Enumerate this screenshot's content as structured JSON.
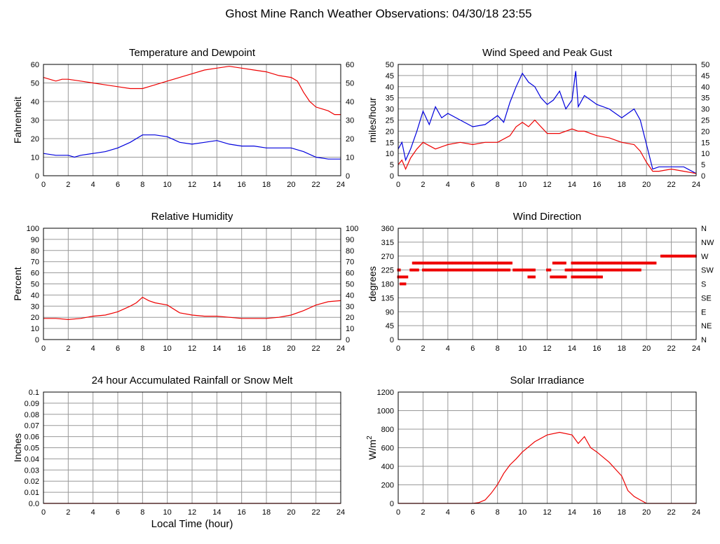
{
  "page": {
    "title": "Ghost Mine Ranch Weather Observations: 04/30/18 23:55",
    "xlabel_bottom": "Local Time (hour)"
  },
  "colors": {
    "red": "#ee0000",
    "blue": "#0000dd",
    "grid": "#999999",
    "frame": "#000000"
  },
  "chart_data": [
    {
      "id": "temp",
      "type": "line",
      "title": "Temperature and Dewpoint",
      "ylabel": "Fahrenheit",
      "xlim": [
        0,
        24
      ],
      "ylim": [
        0,
        60
      ],
      "xticks": [
        "0",
        "2",
        "4",
        "6",
        "8",
        "10",
        "12",
        "14",
        "16",
        "18",
        "20",
        "22",
        "24"
      ],
      "yticks": [
        "0",
        "10",
        "20",
        "30",
        "40",
        "50",
        "60"
      ],
      "right_yticks": [
        "0",
        "10",
        "20",
        "30",
        "40",
        "50",
        "60"
      ],
      "grid": true,
      "series": [
        {
          "color": "#ee0000",
          "x": [
            0,
            0.5,
            1,
            1.5,
            2,
            3,
            4,
            5,
            6,
            7,
            8,
            8.5,
            9,
            10,
            11,
            12,
            13,
            14,
            15,
            16,
            17,
            18,
            19,
            20,
            20.5,
            21,
            21.5,
            22,
            22.5,
            23,
            23.5,
            24
          ],
          "y": [
            53,
            52,
            51,
            52,
            52,
            51,
            50,
            49,
            48,
            47,
            47,
            48,
            49,
            51,
            53,
            55,
            57,
            58,
            59,
            58,
            57,
            56,
            54,
            53,
            51,
            45,
            40,
            37,
            36,
            35,
            33,
            33
          ]
        },
        {
          "color": "#0000dd",
          "x": [
            0,
            1,
            2,
            2.5,
            3,
            4,
            5,
            6,
            7,
            8,
            9,
            10,
            11,
            12,
            13,
            14,
            15,
            16,
            17,
            18,
            19,
            20,
            21,
            22,
            23,
            24
          ],
          "y": [
            12,
            11,
            11,
            10,
            11,
            12,
            13,
            15,
            18,
            22,
            22,
            21,
            18,
            17,
            18,
            19,
            17,
            16,
            16,
            15,
            15,
            15,
            13,
            10,
            9,
            9
          ]
        }
      ]
    },
    {
      "id": "wind",
      "type": "line",
      "title": "Wind Speed and Peak Gust",
      "ylabel": "miles/hour",
      "xlim": [
        0,
        24
      ],
      "ylim": [
        0,
        50
      ],
      "xticks": [
        "0",
        "2",
        "4",
        "6",
        "8",
        "10",
        "12",
        "14",
        "16",
        "18",
        "20",
        "22",
        "24"
      ],
      "yticks": [
        "0",
        "5",
        "10",
        "15",
        "20",
        "25",
        "30",
        "35",
        "40",
        "45",
        "50"
      ],
      "right_yticks": [
        "0",
        "5",
        "10",
        "15",
        "20",
        "25",
        "30",
        "35",
        "40",
        "45",
        "50"
      ],
      "grid": true,
      "series": [
        {
          "color": "#0000dd",
          "x": [
            0,
            0.3,
            0.6,
            1,
            1.5,
            2,
            2.5,
            3,
            3.5,
            4,
            5,
            6,
            7,
            8,
            8.5,
            9,
            9.5,
            10,
            10.5,
            11,
            11.5,
            12,
            12.5,
            13,
            13.5,
            14,
            14.3,
            14.5,
            15,
            16,
            17,
            18,
            19,
            19.5,
            20,
            20.5,
            21,
            22,
            23,
            24
          ],
          "y": [
            12,
            15,
            7,
            12,
            20,
            29,
            23,
            31,
            26,
            28,
            25,
            22,
            23,
            27,
            24,
            33,
            40,
            46,
            42,
            40,
            35,
            32,
            34,
            38,
            30,
            34,
            47,
            31,
            36,
            32,
            30,
            26,
            30,
            25,
            14,
            3,
            4,
            4,
            4,
            1
          ]
        },
        {
          "color": "#ee0000",
          "x": [
            0,
            0.3,
            0.6,
            1,
            1.5,
            2,
            3,
            4,
            5,
            6,
            7,
            8,
            9,
            9.5,
            10,
            10.5,
            11,
            12,
            13,
            14,
            14.5,
            15,
            16,
            17,
            18,
            19,
            19.5,
            20,
            20.5,
            21,
            22,
            23,
            24
          ],
          "y": [
            5,
            7,
            3,
            8,
            12,
            15,
            12,
            14,
            15,
            14,
            15,
            15,
            18,
            22,
            24,
            22,
            25,
            19,
            19,
            21,
            20,
            20,
            18,
            17,
            15,
            14,
            11,
            6,
            2,
            2,
            3,
            2,
            1
          ]
        }
      ]
    },
    {
      "id": "rh",
      "type": "line",
      "title": "Relative Humidity",
      "ylabel": "Percent",
      "xlim": [
        0,
        24
      ],
      "ylim": [
        0,
        100
      ],
      "xticks": [
        "0",
        "2",
        "4",
        "6",
        "8",
        "10",
        "12",
        "14",
        "16",
        "18",
        "20",
        "22",
        "24"
      ],
      "yticks": [
        "0",
        "10",
        "20",
        "30",
        "40",
        "50",
        "60",
        "70",
        "80",
        "90",
        "100"
      ],
      "right_yticks": [
        "0",
        "10",
        "20",
        "30",
        "40",
        "50",
        "60",
        "70",
        "80",
        "90",
        "100"
      ],
      "grid": true,
      "series": [
        {
          "color": "#ee0000",
          "x": [
            0,
            1,
            2,
            3,
            4,
            5,
            6,
            7,
            7.5,
            8,
            8.5,
            9,
            10,
            11,
            12,
            13,
            14,
            15,
            16,
            17,
            18,
            19,
            20,
            21,
            22,
            23,
            24
          ],
          "y": [
            19,
            19,
            18,
            19,
            21,
            22,
            25,
            30,
            33,
            38,
            35,
            33,
            31,
            24,
            22,
            21,
            21,
            20,
            19,
            19,
            19,
            20,
            22,
            26,
            31,
            34,
            35
          ]
        }
      ]
    },
    {
      "id": "dir",
      "type": "scatter",
      "title": "Wind Direction",
      "ylabel": "degrees",
      "xlim": [
        0,
        24
      ],
      "ylim": [
        0,
        360
      ],
      "xticks": [
        "0",
        "2",
        "4",
        "6",
        "8",
        "10",
        "12",
        "14",
        "16",
        "18",
        "20",
        "22",
        "24"
      ],
      "yticks": [
        "0",
        "45",
        "90",
        "135",
        "180",
        "225",
        "270",
        "315",
        "360"
      ],
      "right_yticks": [
        "N",
        "NE",
        "E",
        "SE",
        "S",
        "SW",
        "W",
        "NW",
        "N"
      ],
      "grid": true,
      "series": [
        {
          "color": "#ee0000",
          "bands": [
            {
              "y": 225,
              "x": [
                [
                  0,
                  0.2
                ],
                [
                  1,
                  1.6
                ],
                [
                  2,
                  9
                ],
                [
                  9.3,
                  11
                ],
                [
                  12,
                  12.3
                ],
                [
                  13.5,
                  19.5
                ]
              ]
            },
            {
              "y": 247.5,
              "x": [
                [
                  1.2,
                  9.2
                ],
                [
                  12.5,
                  13.5
                ],
                [
                  14,
                  20.8
                ]
              ]
            },
            {
              "y": 202.5,
              "x": [
                [
                  0,
                  0.8
                ],
                [
                  10.5,
                  11
                ],
                [
                  12.3,
                  13.5
                ],
                [
                  14,
                  16.5
                ]
              ]
            },
            {
              "y": 180,
              "x": [
                [
                  0.2,
                  0.6
                ]
              ]
            },
            {
              "y": 270,
              "x": [
                [
                  21.2,
                  24
                ]
              ]
            }
          ]
        }
      ]
    },
    {
      "id": "rain",
      "type": "line",
      "title": "24 hour Accumulated Rainfall or Snow Melt",
      "ylabel": "Inches",
      "xlim": [
        0,
        24
      ],
      "ylim": [
        0,
        0.1
      ],
      "xticks": [
        "0",
        "2",
        "4",
        "6",
        "8",
        "10",
        "12",
        "14",
        "16",
        "18",
        "20",
        "22",
        "24"
      ],
      "yticks": [
        "0.0",
        "0.01",
        "0.02",
        "0.03",
        "0.04",
        "0.05",
        "0.06",
        "0.07",
        "0.08",
        "0.09",
        "0.1"
      ],
      "grid": true,
      "series": [
        {
          "color": "#ee0000",
          "x": [
            0,
            24
          ],
          "y": [
            0,
            0
          ]
        }
      ]
    },
    {
      "id": "solar",
      "type": "line",
      "title": "Solar Irradiance",
      "ylabel": "W/m",
      "ylabel_sup": "2",
      "xlim": [
        0,
        24
      ],
      "ylim": [
        0,
        1300
      ],
      "xticks": [
        "0",
        "2",
        "4",
        "6",
        "8",
        "10",
        "12",
        "14",
        "16",
        "18",
        "20",
        "22",
        "24"
      ],
      "yticks": [
        "0",
        "200",
        "400",
        "600",
        "800",
        "1000",
        "1200"
      ],
      "grid": true,
      "series": [
        {
          "color": "#ee0000",
          "x": [
            0,
            6,
            6.5,
            7,
            7.5,
            8,
            8.5,
            9,
            9.5,
            10,
            11,
            12,
            13,
            14,
            14.5,
            15,
            15.5,
            16,
            17,
            18,
            18.5,
            19,
            19.5,
            20,
            24
          ],
          "y": [
            0,
            0,
            10,
            40,
            120,
            220,
            350,
            450,
            520,
            600,
            720,
            800,
            830,
            800,
            700,
            780,
            650,
            600,
            480,
            320,
            150,
            80,
            40,
            0,
            0
          ]
        }
      ]
    }
  ]
}
